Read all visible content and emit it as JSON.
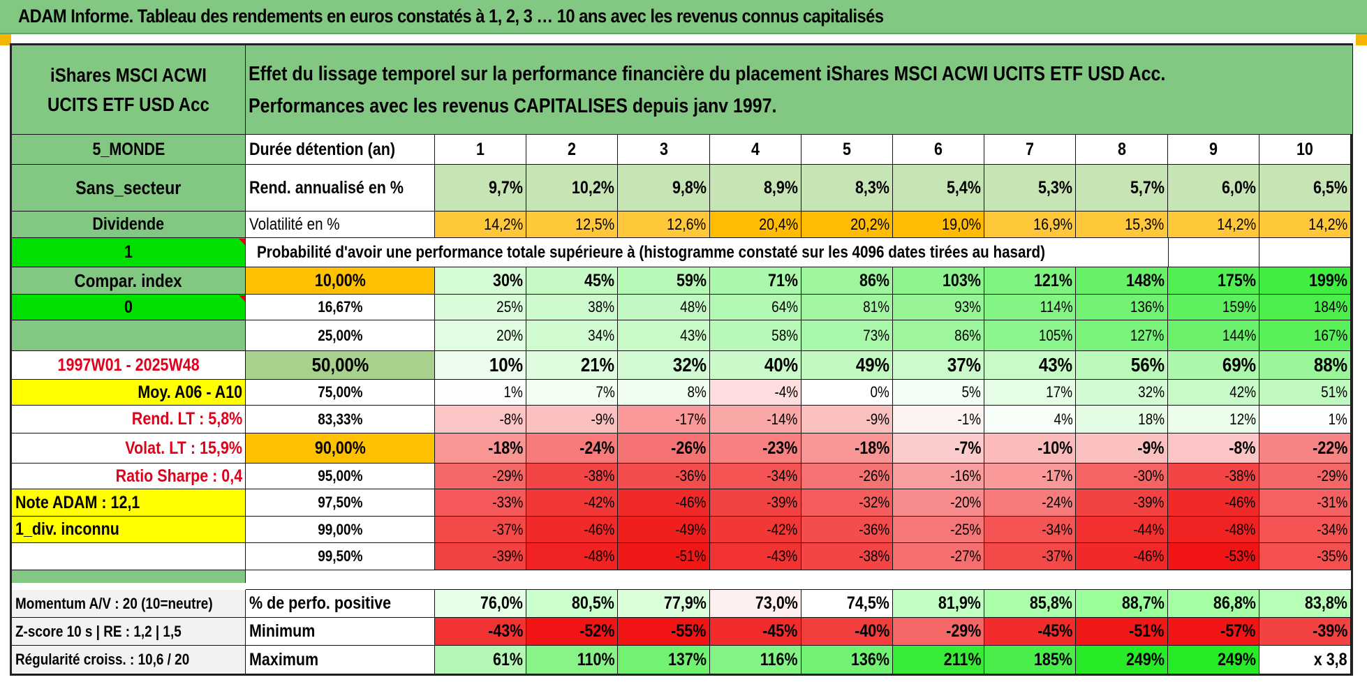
{
  "banner": {
    "title": "ADAM Informe. Tableau des rendements en euros constatés à 1, 2, 3 … 10 ans avec les revenus connus capitalisés"
  },
  "fund": {
    "name": "iShares MSCI ACWI UCITS ETF USD Acc",
    "description": "Effet du lissage temporel sur la performance financière du placement iShares MSCI ACWI UCITS ETF USD Acc. Performances avec les revenus CAPITALISES depuis janv 1997."
  },
  "left_panel": {
    "zone": "5_MONDE",
    "sector": "Sans_secteur",
    "dividend_label": "Dividende",
    "dividend_value": "1",
    "compar_index_label": "Compar. index",
    "compar_index_value": "0",
    "period": "1997W01 - 2025W48",
    "moy_label": "Moy. A06 - A10",
    "rend_lt": "Rend. LT :   5,8%",
    "volat_lt": "Volat. LT :   15,9%",
    "ratio_sharpe": "Ratio Sharpe :    0,4",
    "note_adam": "Note ADAM : 12,1",
    "div_status": "1_div. inconnu"
  },
  "table": {
    "duration_label": "Durée détention (an)",
    "years": [
      "1",
      "2",
      "3",
      "4",
      "5",
      "6",
      "7",
      "8",
      "9",
      "10"
    ],
    "rend_label": "Rend. annualisé en %",
    "rend": [
      "9,7%",
      "10,2%",
      "9,8%",
      "8,9%",
      "8,3%",
      "5,4%",
      "5,3%",
      "5,7%",
      "6,0%",
      "6,5%"
    ],
    "vol_label": "Volatilité en %",
    "vol": [
      "14,2%",
      "12,5%",
      "12,6%",
      "20,4%",
      "20,2%",
      "19,0%",
      "16,9%",
      "15,3%",
      "14,2%",
      "14,2%"
    ],
    "prob_header": "Probabilité d'avoir une performance totale supérieure à (histogramme constaté sur les 4096 dates tirées au hasard)",
    "quantiles": [
      {
        "label": "10,00%",
        "values": [
          "30%",
          "45%",
          "59%",
          "71%",
          "86%",
          "103%",
          "121%",
          "148%",
          "175%",
          "199%"
        ]
      },
      {
        "label": "16,67%",
        "values": [
          "25%",
          "38%",
          "48%",
          "64%",
          "81%",
          "93%",
          "114%",
          "136%",
          "159%",
          "184%"
        ]
      },
      {
        "label": "25,00%",
        "values": [
          "20%",
          "34%",
          "43%",
          "58%",
          "73%",
          "86%",
          "105%",
          "127%",
          "144%",
          "167%"
        ]
      },
      {
        "label": "50,00%",
        "values": [
          "10%",
          "21%",
          "32%",
          "40%",
          "49%",
          "37%",
          "43%",
          "56%",
          "69%",
          "88%"
        ]
      },
      {
        "label": "75,00%",
        "values": [
          "1%",
          "7%",
          "8%",
          "-4%",
          "0%",
          "5%",
          "17%",
          "32%",
          "42%",
          "51%"
        ]
      },
      {
        "label": "83,33%",
        "values": [
          "-8%",
          "-9%",
          "-17%",
          "-14%",
          "-9%",
          "-1%",
          "4%",
          "18%",
          "12%",
          "1%"
        ]
      },
      {
        "label": "90,00%",
        "values": [
          "-18%",
          "-24%",
          "-26%",
          "-23%",
          "-18%",
          "-7%",
          "-10%",
          "-9%",
          "-8%",
          "-22%"
        ]
      },
      {
        "label": "95,00%",
        "values": [
          "-29%",
          "-38%",
          "-36%",
          "-34%",
          "-26%",
          "-16%",
          "-17%",
          "-30%",
          "-38%",
          "-29%"
        ]
      },
      {
        "label": "97,50%",
        "values": [
          "-33%",
          "-42%",
          "-46%",
          "-39%",
          "-32%",
          "-20%",
          "-24%",
          "-39%",
          "-46%",
          "-31%"
        ]
      },
      {
        "label": "99,00%",
        "values": [
          "-37%",
          "-46%",
          "-49%",
          "-42%",
          "-36%",
          "-25%",
          "-34%",
          "-44%",
          "-48%",
          "-34%"
        ]
      },
      {
        "label": "99,50%",
        "values": [
          "-39%",
          "-48%",
          "-51%",
          "-43%",
          "-38%",
          "-27%",
          "-37%",
          "-46%",
          "-53%",
          "-35%"
        ]
      }
    ],
    "momentum_label": "Momentum A/V : 20 (10=neutre)",
    "zscore_label": "Z-score 10 s | RE : 1,2 | 1,5",
    "regularite_label": "Régularité croiss. : 10,6 / 20",
    "pct_pos_label": "% de perfo. positive",
    "pct_pos": [
      "76,0%",
      "80,5%",
      "77,9%",
      "73,0%",
      "74,5%",
      "81,9%",
      "85,8%",
      "88,7%",
      "86,8%",
      "83,8%"
    ],
    "min_label": "Minimum",
    "min": [
      "-43%",
      "-52%",
      "-55%",
      "-45%",
      "-40%",
      "-29%",
      "-45%",
      "-51%",
      "-57%",
      "-39%"
    ],
    "max_label": "Maximum",
    "max": [
      "61%",
      "110%",
      "137%",
      "116%",
      "136%",
      "211%",
      "185%",
      "249%",
      "249%",
      "x 3,8"
    ]
  }
}
